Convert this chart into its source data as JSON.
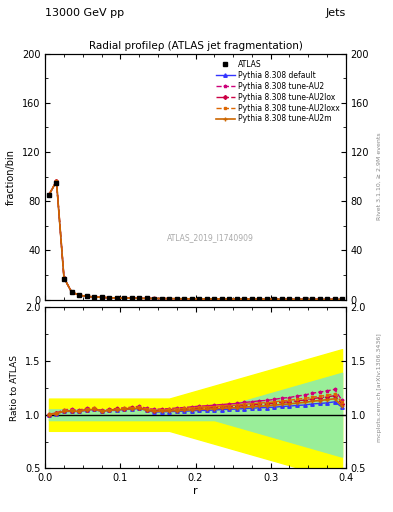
{
  "title_top_left": "13000 GeV pp",
  "title_top_right": "Jets",
  "main_title": "Radial profileρ (ATLAS jet fragmentation)",
  "ylabel_main": "fraction/bin",
  "ylabel_ratio": "Ratio to ATLAS",
  "xlabel": "r",
  "watermark": "ATLAS_2019_I1740909",
  "right_label_top": "Rivet 3.1.10, ≥ 2.9M events",
  "right_label_bottom": "mcplots.cern.ch [arXiv:1306.3436]",
  "ylim_main": [
    0,
    200
  ],
  "ylim_ratio": [
    0.5,
    2.0
  ],
  "xlim": [
    0.0,
    0.4
  ],
  "r_values": [
    0.005,
    0.015,
    0.025,
    0.035,
    0.045,
    0.055,
    0.065,
    0.075,
    0.085,
    0.095,
    0.105,
    0.115,
    0.125,
    0.135,
    0.145,
    0.155,
    0.165,
    0.175,
    0.185,
    0.195,
    0.205,
    0.215,
    0.225,
    0.235,
    0.245,
    0.255,
    0.265,
    0.275,
    0.285,
    0.295,
    0.305,
    0.315,
    0.325,
    0.335,
    0.345,
    0.355,
    0.365,
    0.375,
    0.385,
    0.395
  ],
  "atlas_data": [
    85,
    95,
    17,
    6,
    3.5,
    2.5,
    2.0,
    1.7,
    1.4,
    1.2,
    1.1,
    1.0,
    0.9,
    0.85,
    0.8,
    0.75,
    0.7,
    0.65,
    0.6,
    0.55,
    0.5,
    0.48,
    0.45,
    0.42,
    0.4,
    0.38,
    0.35,
    0.33,
    0.31,
    0.3,
    0.28,
    0.26,
    0.25,
    0.23,
    0.22,
    0.2,
    0.19,
    0.18,
    0.17,
    0.15
  ],
  "pythia_default": [
    85,
    96,
    17.5,
    6.2,
    3.6,
    2.6,
    2.1,
    1.75,
    1.45,
    1.25,
    1.15,
    1.05,
    0.95,
    0.88,
    0.82,
    0.77,
    0.72,
    0.67,
    0.62,
    0.57,
    0.52,
    0.5,
    0.47,
    0.44,
    0.42,
    0.4,
    0.37,
    0.35,
    0.33,
    0.32,
    0.3,
    0.28,
    0.27,
    0.25,
    0.24,
    0.22,
    0.21,
    0.2,
    0.19,
    0.16
  ],
  "pythia_au2": [
    85.5,
    96.5,
    17.8,
    6.3,
    3.65,
    2.65,
    2.12,
    1.77,
    1.47,
    1.27,
    1.17,
    1.07,
    0.97,
    0.9,
    0.84,
    0.79,
    0.74,
    0.69,
    0.64,
    0.59,
    0.54,
    0.52,
    0.49,
    0.46,
    0.44,
    0.42,
    0.39,
    0.37,
    0.35,
    0.34,
    0.32,
    0.3,
    0.29,
    0.27,
    0.26,
    0.24,
    0.23,
    0.22,
    0.21,
    0.17
  ],
  "pythia_au2lox": [
    85.2,
    96.3,
    17.6,
    6.25,
    3.62,
    2.62,
    2.11,
    1.76,
    1.46,
    1.26,
    1.16,
    1.06,
    0.96,
    0.89,
    0.83,
    0.78,
    0.73,
    0.68,
    0.63,
    0.58,
    0.53,
    0.51,
    0.48,
    0.45,
    0.43,
    0.41,
    0.38,
    0.36,
    0.34,
    0.33,
    0.31,
    0.29,
    0.28,
    0.26,
    0.25,
    0.23,
    0.22,
    0.21,
    0.2,
    0.165
  ],
  "pythia_au2loxx": [
    85.3,
    96.4,
    17.7,
    6.27,
    3.63,
    2.63,
    2.115,
    1.765,
    1.465,
    1.265,
    1.165,
    1.065,
    0.965,
    0.895,
    0.835,
    0.785,
    0.735,
    0.685,
    0.635,
    0.585,
    0.535,
    0.515,
    0.485,
    0.455,
    0.435,
    0.415,
    0.385,
    0.365,
    0.345,
    0.335,
    0.315,
    0.295,
    0.285,
    0.265,
    0.255,
    0.235,
    0.225,
    0.215,
    0.205,
    0.168
  ],
  "pythia_au2m": [
    85.1,
    96.2,
    17.55,
    6.22,
    3.61,
    2.61,
    2.105,
    1.755,
    1.455,
    1.255,
    1.155,
    1.055,
    0.955,
    0.885,
    0.825,
    0.775,
    0.725,
    0.675,
    0.625,
    0.575,
    0.525,
    0.505,
    0.475,
    0.445,
    0.425,
    0.405,
    0.375,
    0.355,
    0.335,
    0.325,
    0.305,
    0.285,
    0.275,
    0.255,
    0.245,
    0.225,
    0.215,
    0.205,
    0.195,
    0.162
  ],
  "ratio_default": [
    1.0,
    1.01,
    1.03,
    1.03,
    1.03,
    1.04,
    1.05,
    1.03,
    1.04,
    1.04,
    1.05,
    1.05,
    1.06,
    1.04,
    1.025,
    1.027,
    1.029,
    1.031,
    1.033,
    1.036,
    1.04,
    1.04,
    1.044,
    1.048,
    1.05,
    1.053,
    1.057,
    1.06,
    1.065,
    1.067,
    1.07,
    1.077,
    1.08,
    1.087,
    1.09,
    1.1,
    1.105,
    1.11,
    1.12,
    1.07
  ],
  "ratio_au2": [
    1.006,
    1.016,
    1.047,
    1.05,
    1.043,
    1.06,
    1.06,
    1.041,
    1.05,
    1.058,
    1.064,
    1.07,
    1.078,
    1.059,
    1.05,
    1.053,
    1.057,
    1.062,
    1.067,
    1.073,
    1.08,
    1.083,
    1.089,
    1.095,
    1.1,
    1.105,
    1.114,
    1.121,
    1.129,
    1.133,
    1.143,
    1.154,
    1.16,
    1.174,
    1.182,
    1.2,
    1.21,
    1.222,
    1.235,
    1.133
  ],
  "ratio_au2lox": [
    1.002,
    1.012,
    1.035,
    1.038,
    1.034,
    1.048,
    1.055,
    1.035,
    1.043,
    1.05,
    1.055,
    1.06,
    1.067,
    1.047,
    1.038,
    1.04,
    1.043,
    1.046,
    1.05,
    1.055,
    1.06,
    1.063,
    1.067,
    1.071,
    1.075,
    1.079,
    1.086,
    1.091,
    1.097,
    1.1,
    1.107,
    1.115,
    1.12,
    1.13,
    1.136,
    1.15,
    1.158,
    1.167,
    1.176,
    1.1
  ],
  "ratio_au2loxx": [
    1.004,
    1.014,
    1.041,
    1.044,
    1.038,
    1.052,
    1.058,
    1.038,
    1.046,
    1.053,
    1.059,
    1.065,
    1.072,
    1.053,
    1.044,
    1.046,
    1.05,
    1.054,
    1.058,
    1.063,
    1.068,
    1.071,
    1.076,
    1.081,
    1.085,
    1.089,
    1.097,
    1.103,
    1.109,
    1.112,
    1.12,
    1.128,
    1.134,
    1.145,
    1.152,
    1.163,
    1.172,
    1.182,
    1.193,
    1.115
  ],
  "ratio_au2m": [
    1.001,
    1.011,
    1.032,
    1.035,
    1.031,
    1.044,
    1.05,
    1.032,
    1.04,
    1.046,
    1.05,
    1.055,
    1.061,
    1.041,
    1.031,
    1.033,
    1.036,
    1.038,
    1.042,
    1.045,
    1.05,
    1.052,
    1.056,
    1.06,
    1.063,
    1.066,
    1.071,
    1.075,
    1.079,
    1.083,
    1.089,
    1.096,
    1.1,
    1.109,
    1.114,
    1.125,
    1.132,
    1.14,
    1.148,
    1.08
  ],
  "green_band_lo": [
    0.95,
    0.95,
    0.95,
    0.95,
    0.95,
    0.95,
    0.95,
    0.95,
    0.95,
    0.95,
    0.95,
    0.95,
    0.95,
    0.95,
    0.95,
    0.95,
    0.95,
    0.95,
    0.95,
    0.95,
    0.95,
    0.95,
    0.95,
    0.93,
    0.91,
    0.89,
    0.87,
    0.85,
    0.83,
    0.81,
    0.79,
    0.77,
    0.75,
    0.73,
    0.71,
    0.69,
    0.67,
    0.65,
    0.63,
    0.61
  ],
  "green_band_hi": [
    1.05,
    1.05,
    1.05,
    1.05,
    1.05,
    1.05,
    1.05,
    1.05,
    1.05,
    1.05,
    1.05,
    1.05,
    1.05,
    1.05,
    1.05,
    1.05,
    1.05,
    1.05,
    1.05,
    1.05,
    1.05,
    1.05,
    1.05,
    1.07,
    1.09,
    1.11,
    1.13,
    1.15,
    1.17,
    1.19,
    1.21,
    1.23,
    1.25,
    1.27,
    1.29,
    1.31,
    1.33,
    1.35,
    1.37,
    1.39
  ],
  "yellow_band_lo": [
    0.85,
    0.85,
    0.85,
    0.85,
    0.85,
    0.85,
    0.85,
    0.85,
    0.85,
    0.85,
    0.85,
    0.85,
    0.85,
    0.85,
    0.85,
    0.85,
    0.85,
    0.83,
    0.81,
    0.79,
    0.77,
    0.75,
    0.73,
    0.71,
    0.69,
    0.67,
    0.65,
    0.63,
    0.61,
    0.59,
    0.57,
    0.55,
    0.53,
    0.51,
    0.49,
    0.47,
    0.45,
    0.43,
    0.41,
    0.39
  ],
  "yellow_band_hi": [
    1.15,
    1.15,
    1.15,
    1.15,
    1.15,
    1.15,
    1.15,
    1.15,
    1.15,
    1.15,
    1.15,
    1.15,
    1.15,
    1.15,
    1.15,
    1.15,
    1.15,
    1.17,
    1.19,
    1.21,
    1.23,
    1.25,
    1.27,
    1.29,
    1.31,
    1.33,
    1.35,
    1.37,
    1.39,
    1.41,
    1.43,
    1.45,
    1.47,
    1.49,
    1.51,
    1.53,
    1.55,
    1.57,
    1.59,
    1.61
  ],
  "color_default": "#3333ff",
  "color_au2": "#cc007a",
  "color_au2lox": "#cc0044",
  "color_au2loxx": "#dd6600",
  "color_au2m": "#cc6600",
  "bg_color": "#ffffff"
}
